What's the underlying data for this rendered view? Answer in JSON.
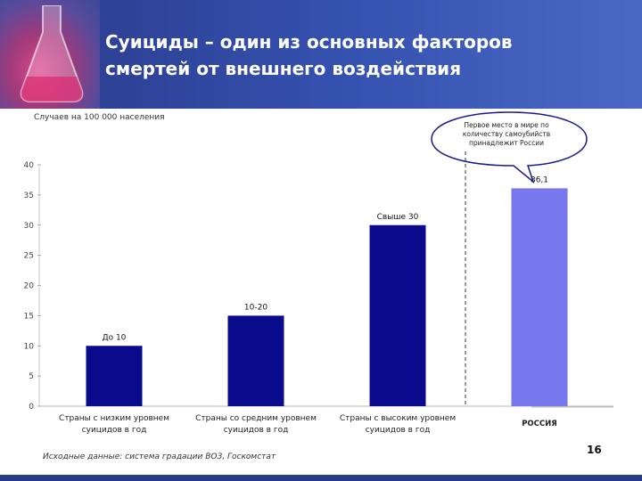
{
  "header": {
    "title_line1": "Суициды – один из основных факторов",
    "title_line2": "смертей от внешнего воздействия"
  },
  "unit_label": "Случаев на 100 000 населения",
  "callout": {
    "text": "Первое место в мире по количеству самоубийств принадлежит России"
  },
  "footer": {
    "source": "Исходные данные: система градации ВОЗ, Госкомстат",
    "page_number": "16"
  },
  "colors": {
    "header_bg": "#2e44a0",
    "bar_dark": "#0a0a8c",
    "bar_russia": "#7777ee"
  },
  "chart_data": {
    "type": "bar",
    "categories": [
      [
        "Страны с низким уровнем",
        "суицидов в год"
      ],
      [
        "Страны со средним уровнем",
        "суицидов в год"
      ],
      [
        "Страны с высоким уровнем",
        "суицидов в год"
      ],
      [
        "РОССИЯ"
      ]
    ],
    "values": [
      10,
      15,
      30,
      36.1
    ],
    "data_labels": [
      "До 10",
      "10-20",
      "Свыше 30",
      "36,1"
    ],
    "yticks": [
      "0",
      "5",
      "10",
      "15",
      "20",
      "25",
      "30",
      "35",
      "40"
    ],
    "ylim": [
      0,
      40
    ],
    "grid": false
  }
}
